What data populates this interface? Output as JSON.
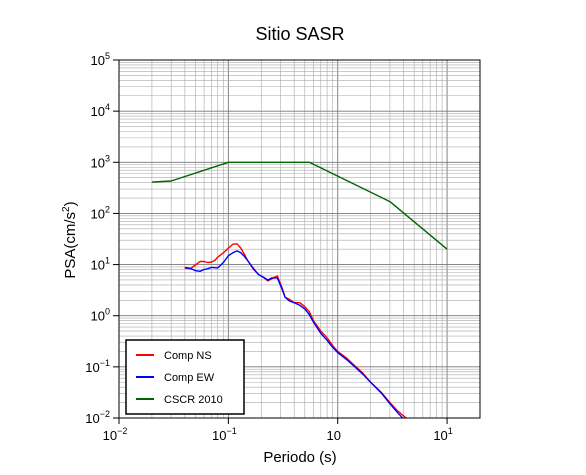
{
  "chart_data": {
    "type": "line",
    "title": "Sitio SASR",
    "xlabel": "Periodo (s)",
    "ylabel_main": "PSA(cm/s",
    "ylabel_sup": "2",
    "ylabel_close": ")",
    "x_scale": "log",
    "y_scale": "log",
    "xlim": [
      0.01,
      20
    ],
    "ylim": [
      0.01,
      100000
    ],
    "grid": true,
    "legend_position": "bottom-left",
    "x_ticks": [
      {
        "value": 0.01,
        "base": "10",
        "exp": "−2"
      },
      {
        "value": 0.1,
        "base": "10",
        "exp": "−1"
      },
      {
        "value": 1,
        "label": "10",
        "base": "",
        "exp": ""
      },
      {
        "value": 10,
        "base": "10",
        "exp": "1"
      }
    ],
    "y_ticks": [
      {
        "value": 0.01,
        "base": "10",
        "exp": "−2"
      },
      {
        "value": 0.1,
        "base": "10",
        "exp": "−1"
      },
      {
        "value": 1,
        "base": "10",
        "exp": "0"
      },
      {
        "value": 10,
        "base": "10",
        "exp": "1"
      },
      {
        "value": 100,
        "base": "10",
        "exp": "2"
      },
      {
        "value": 1000,
        "base": "10",
        "exp": "3"
      },
      {
        "value": 10000,
        "base": "10",
        "exp": "4"
      },
      {
        "value": 100000,
        "base": "10",
        "exp": "5"
      }
    ],
    "series": [
      {
        "name": "Comp NS",
        "color": "#ff0000",
        "points": [
          [
            0.04,
            8.5
          ],
          [
            0.045,
            8.3
          ],
          [
            0.05,
            9.8
          ],
          [
            0.055,
            11.5
          ],
          [
            0.06,
            11.5
          ],
          [
            0.065,
            11
          ],
          [
            0.07,
            11.2
          ],
          [
            0.075,
            12
          ],
          [
            0.08,
            14
          ],
          [
            0.09,
            17
          ],
          [
            0.1,
            21
          ],
          [
            0.11,
            25
          ],
          [
            0.12,
            25.5
          ],
          [
            0.13,
            21
          ],
          [
            0.14,
            16
          ],
          [
            0.15,
            12
          ],
          [
            0.17,
            8
          ],
          [
            0.19,
            6.3
          ],
          [
            0.21,
            5.6
          ],
          [
            0.23,
            4.8
          ],
          [
            0.25,
            5.3
          ],
          [
            0.28,
            6
          ],
          [
            0.31,
            3.5
          ],
          [
            0.33,
            2.3
          ],
          [
            0.36,
            2.1
          ],
          [
            0.4,
            1.8
          ],
          [
            0.45,
            1.8
          ],
          [
            0.5,
            1.5
          ],
          [
            0.55,
            1.2
          ],
          [
            0.6,
            0.8
          ],
          [
            0.7,
            0.5
          ],
          [
            0.8,
            0.37
          ],
          [
            0.9,
            0.26
          ],
          [
            1.0,
            0.2
          ],
          [
            1.2,
            0.15
          ],
          [
            1.4,
            0.11
          ],
          [
            1.7,
            0.075
          ],
          [
            2.0,
            0.05
          ],
          [
            2.5,
            0.032
          ],
          [
            3.0,
            0.02
          ],
          [
            3.5,
            0.014
          ],
          [
            4.0,
            0.011
          ],
          [
            4.3,
            0.0097
          ]
        ]
      },
      {
        "name": "Comp EW",
        "color": "#0000ff",
        "points": [
          [
            0.04,
            8.8
          ],
          [
            0.045,
            8.4
          ],
          [
            0.05,
            7.6
          ],
          [
            0.055,
            7.4
          ],
          [
            0.06,
            8
          ],
          [
            0.065,
            8.3
          ],
          [
            0.07,
            8.8
          ],
          [
            0.08,
            8.6
          ],
          [
            0.09,
            11
          ],
          [
            0.1,
            15
          ],
          [
            0.11,
            17
          ],
          [
            0.12,
            18.5
          ],
          [
            0.13,
            17
          ],
          [
            0.14,
            14.5
          ],
          [
            0.15,
            12
          ],
          [
            0.17,
            8.3
          ],
          [
            0.19,
            6.3
          ],
          [
            0.21,
            5.6
          ],
          [
            0.23,
            5
          ],
          [
            0.25,
            5.5
          ],
          [
            0.28,
            5.5
          ],
          [
            0.31,
            3.3
          ],
          [
            0.33,
            2.3
          ],
          [
            0.36,
            1.95
          ],
          [
            0.4,
            1.8
          ],
          [
            0.45,
            1.6
          ],
          [
            0.5,
            1.35
          ],
          [
            0.55,
            1.05
          ],
          [
            0.6,
            0.75
          ],
          [
            0.7,
            0.45
          ],
          [
            0.8,
            0.33
          ],
          [
            0.9,
            0.24
          ],
          [
            1.0,
            0.19
          ],
          [
            1.2,
            0.14
          ],
          [
            1.4,
            0.105
          ],
          [
            1.7,
            0.072
          ],
          [
            2.0,
            0.05
          ],
          [
            2.5,
            0.031
          ],
          [
            3.0,
            0.019
          ],
          [
            3.5,
            0.013
          ],
          [
            4.0,
            0.0095
          ]
        ]
      },
      {
        "name": "CSCR 2010",
        "color": "#006400",
        "points": [
          [
            0.02,
            410
          ],
          [
            0.03,
            430
          ],
          [
            0.1,
            1000
          ],
          [
            0.55,
            1000
          ],
          [
            3.0,
            170
          ],
          [
            10,
            20
          ]
        ]
      }
    ]
  }
}
